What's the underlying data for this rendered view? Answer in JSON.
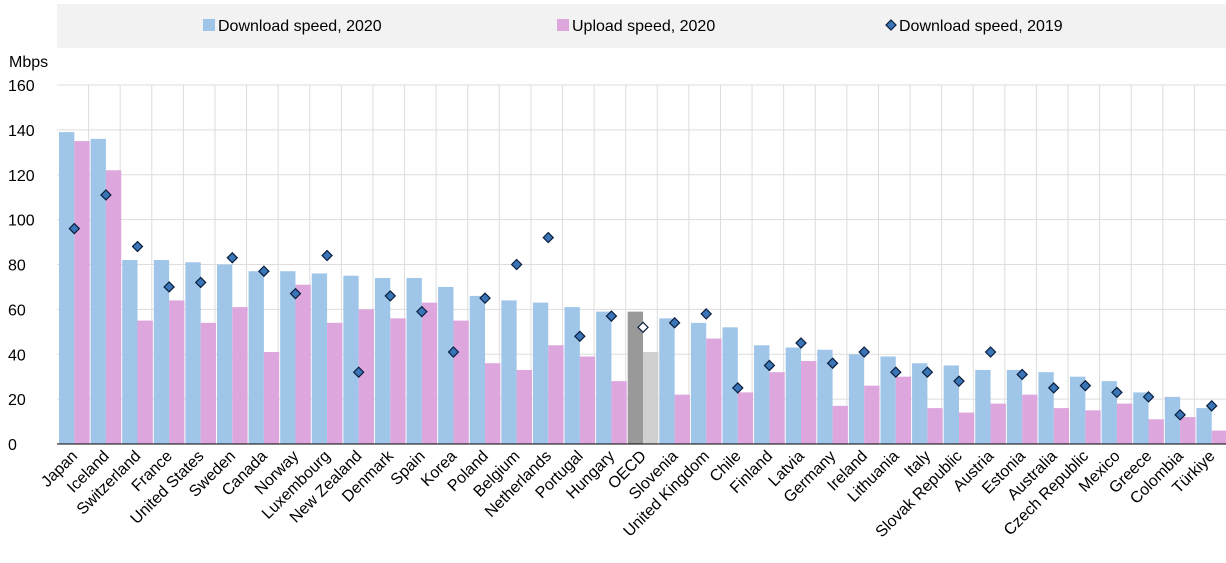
{
  "chart_data": {
    "type": "bar",
    "unit_label": "Mbps",
    "ylim": [
      0,
      160
    ],
    "yticks": [
      0,
      20,
      40,
      60,
      80,
      100,
      120,
      140,
      160
    ],
    "grid": true,
    "legend_position": "top",
    "categories": [
      "Japan",
      "Iceland",
      "Switzerland",
      "France",
      "United States",
      "Sweden",
      "Canada",
      "Norway",
      "Luxembourg",
      "New Zealand",
      "Denmark",
      "Spain",
      "Korea",
      "Poland",
      "Belgium",
      "Netherlands",
      "Portugal",
      "Hungary",
      "OECD",
      "Slovenia",
      "United Kingdom",
      "Chile",
      "Finland",
      "Latvia",
      "Germany",
      "Ireland",
      "Lithuania",
      "Italy",
      "Slovak Republic",
      "Austria",
      "Estonia",
      "Australia",
      "Czech Republic",
      "Mexico",
      "Greece",
      "Colombia",
      "Türkiye"
    ],
    "highlight_category": "OECD",
    "series": [
      {
        "name": "Download speed, 2020",
        "kind": "bar",
        "color": "#9fc5e8",
        "highlight_color": "#999999",
        "values": [
          139,
          136,
          82,
          82,
          81,
          80,
          77,
          77,
          76,
          75,
          74,
          74,
          70,
          66,
          64,
          63,
          61,
          59,
          59,
          56,
          54,
          52,
          44,
          43,
          42,
          40,
          39,
          36,
          35,
          33,
          33,
          32,
          30,
          28,
          23,
          21,
          16
        ]
      },
      {
        "name": "Upload speed, 2020",
        "kind": "bar",
        "color": "#dda6dd",
        "highlight_color": "#d0d0d0",
        "values": [
          135,
          122,
          55,
          64,
          54,
          61,
          41,
          71,
          54,
          60,
          56,
          63,
          55,
          36,
          33,
          44,
          39,
          28,
          41,
          22,
          47,
          23,
          32,
          37,
          17,
          26,
          30,
          16,
          14,
          18,
          22,
          16,
          15,
          18,
          11,
          12,
          6
        ]
      },
      {
        "name": "Download speed, 2019",
        "kind": "marker",
        "color": "#3a75b8",
        "highlight_color": "#ffffff",
        "values": [
          96,
          111,
          88,
          70,
          72,
          83,
          77,
          67,
          84,
          32,
          66,
          59,
          41,
          65,
          80,
          92,
          48,
          57,
          52,
          54,
          58,
          25,
          35,
          45,
          36,
          41,
          32,
          32,
          28,
          41,
          31,
          25,
          26,
          23,
          21,
          13,
          17
        ]
      }
    ]
  }
}
